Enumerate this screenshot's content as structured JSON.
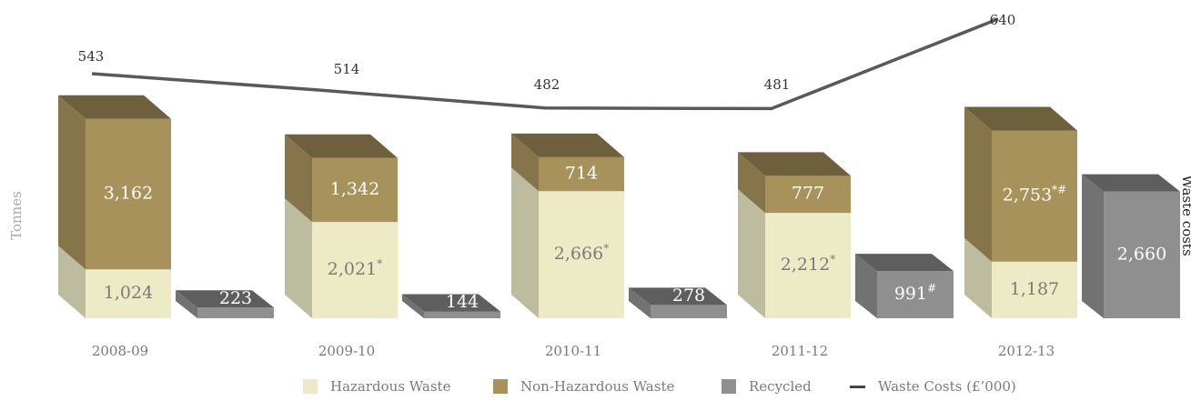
{
  "chart_data": {
    "type": "bar",
    "subtype": "3d-stacked-bar-with-line",
    "categories": [
      "2008-09",
      "2009-10",
      "2010-11",
      "2011-12",
      "2012-13"
    ],
    "ylabel": "Tonnes",
    "y2label": "Waste costs",
    "series": [
      {
        "name": "Hazardous Waste",
        "type": "bar",
        "stack": "waste",
        "values": [
          1024,
          2021,
          2666,
          2212,
          1187
        ],
        "labels": [
          "1,024",
          "2,021*",
          "2,666*",
          "2,212*",
          "1,187"
        ],
        "color": "#ecebc6"
      },
      {
        "name": "Non-Hazardous Waste",
        "type": "bar",
        "stack": "waste",
        "values": [
          3162,
          1342,
          714,
          777,
          2753
        ],
        "labels": [
          "3,162",
          "1,342",
          "714",
          "777",
          "2,753*#"
        ],
        "color": "#a8925c"
      },
      {
        "name": "Recycled",
        "type": "bar",
        "stack": "recycled",
        "values": [
          223,
          144,
          278,
          991,
          2660
        ],
        "labels": [
          "223",
          "144",
          "278",
          "991#",
          "2,660"
        ],
        "color": "#8f8f8f"
      },
      {
        "name": "Waste Costs (£’000)",
        "type": "line",
        "axis": "secondary",
        "values": [
          543,
          514,
          482,
          481,
          640
        ],
        "labels": [
          "543",
          "514",
          "482",
          "481",
          "640"
        ],
        "color": "#595959"
      }
    ],
    "legend_position": "bottom",
    "grid": false
  }
}
